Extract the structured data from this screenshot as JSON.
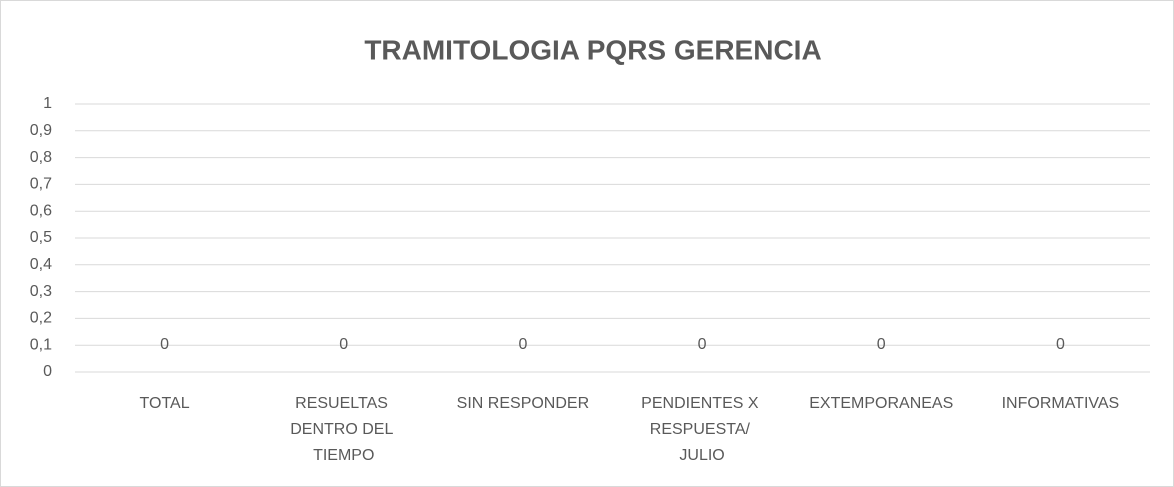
{
  "chart_data": {
    "type": "bar",
    "title": "TRAMITOLOGIA PQRS GERENCIA",
    "categories": [
      "TOTAL",
      "RESUELTAS DENTRO DEL TIEMPO",
      "SIN RESPONDER",
      "PENDIENTES X RESPUESTA/ JULIO",
      "EXTEMPORANEAS",
      "INFORMATIVAS"
    ],
    "values": [
      0,
      0,
      0,
      0,
      0,
      0
    ],
    "color": "#4472c4",
    "ylim": [
      0,
      1
    ],
    "yticks": [
      0,
      {
        "value": 0.1,
        "label": "0,1"
      },
      {
        "value": 0.2,
        "label": "0,2"
      },
      {
        "value": 0.3,
        "label": "0,3"
      },
      {
        "value": 0.4,
        "label": "0,4"
      },
      {
        "value": 0.5,
        "label": "0,5"
      },
      {
        "value": 0.6,
        "label": "0,6"
      },
      {
        "value": 0.7,
        "label": "0,7"
      },
      {
        "value": 0.8,
        "label": "0,8"
      },
      {
        "value": 0.9,
        "label": "0,9"
      },
      1
    ],
    "grid": true
  }
}
